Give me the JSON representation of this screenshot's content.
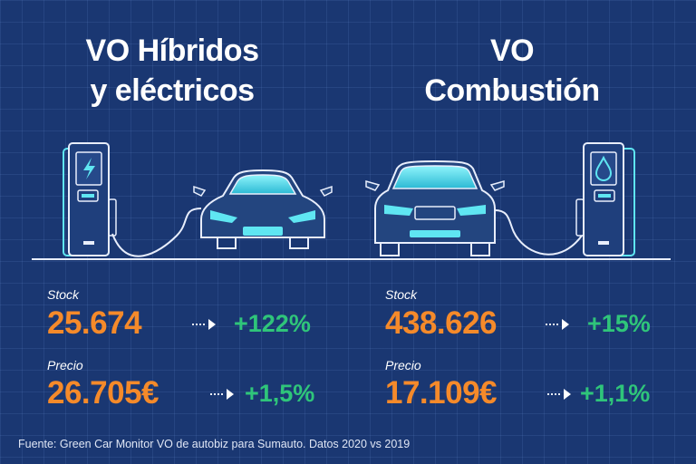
{
  "left": {
    "title_line1": "VO Híbridos",
    "title_line2": "y eléctricos",
    "stock_label": "Stock",
    "stock_value": "25.674",
    "stock_change": "+122%",
    "price_label": "Precio",
    "price_value": "26.705€",
    "price_change": "+1,5%"
  },
  "right": {
    "title_line1": "VO",
    "title_line2": "Combustión",
    "stock_label": "Stock",
    "stock_value": "438.626",
    "stock_change": "+15%",
    "price_label": "Precio",
    "price_value": "17.109€",
    "price_change": "+1,1%"
  },
  "source": "Fuente: Green Car Monitor VO de autobiz para Sumauto. Datos 2020 vs 2019",
  "colors": {
    "background": "#1a3772",
    "value": "#f58a2a",
    "change": "#2fc57a",
    "accent_cyan": "#5fe6f2"
  },
  "icons": [
    "lightning-icon",
    "drop-icon",
    "arrow-right-icon"
  ]
}
